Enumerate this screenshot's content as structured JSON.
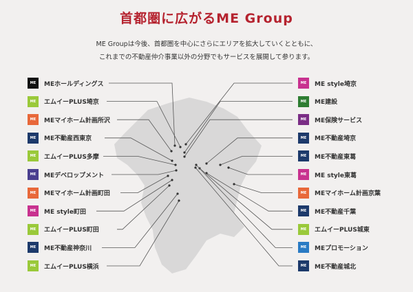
{
  "title": "首都圏に広がるME Group",
  "intro": [
    "ME Groupは今後、首都圏を中心にさらにエリアを拡大していくとともに、",
    "これまでの不動産仲介事業以外の分野でもサービスを展開して参ります。"
  ],
  "left": [
    {
      "label": "MEホールディングス",
      "logo": "me-holdings-logo",
      "color": "#111111"
    },
    {
      "label": "エムイーPLUS埼京",
      "logo": "me-plus-logo",
      "color": "#9ac93a"
    },
    {
      "label": "MEマイホーム計画所沢",
      "logo": "myhome-logo",
      "color": "#e8683a"
    },
    {
      "label": "ME不動産西東京",
      "logo": "me-fudosan-logo",
      "color": "#1d3a6b"
    },
    {
      "label": "エムイーPLUS多摩",
      "logo": "me-plus-logo",
      "color": "#9ac93a"
    },
    {
      "label": "MEデベロップメント",
      "logo": "me-development-logo",
      "color": "#4a3f8f"
    },
    {
      "label": "MEマイホーム計画町田",
      "logo": "myhome-logo",
      "color": "#e8683a"
    },
    {
      "label": "ME style町田",
      "logo": "me-style-logo",
      "color": "#c8328f"
    },
    {
      "label": "エムイーPLUS町田",
      "logo": "me-plus-logo",
      "color": "#9ac93a"
    },
    {
      "label": "ME不動産神奈川",
      "logo": "me-fudosan-logo",
      "color": "#1d3a6b"
    },
    {
      "label": "エムイーPLUS横浜",
      "logo": "me-plus-logo",
      "color": "#9ac93a"
    }
  ],
  "right": [
    {
      "label": "ME style埼京",
      "logo": "me-style-logo",
      "color": "#c8328f"
    },
    {
      "label": "ME建設",
      "logo": "me-kensetsu-logo",
      "color": "#2e7d32"
    },
    {
      "label": "ME保険サービス",
      "logo": "me-hoken-logo",
      "color": "#7a2d85"
    },
    {
      "label": "ME不動産埼京",
      "logo": "me-fudosan-logo",
      "color": "#1d3a6b"
    },
    {
      "label": "ME不動産東葛",
      "logo": "me-fudosan-logo",
      "color": "#1d3a6b"
    },
    {
      "label": "ME style東葛",
      "logo": "me-style-logo",
      "color": "#c8328f"
    },
    {
      "label": "MEマイホーム計画京葉",
      "logo": "myhome-logo",
      "color": "#e8683a"
    },
    {
      "label": "ME不動産千葉",
      "logo": "me-fudosan-logo",
      "color": "#1d3a6b"
    },
    {
      "label": "エムイーPLUS城東",
      "logo": "me-plus-logo",
      "color": "#9ac93a"
    },
    {
      "label": "MEプロモーション",
      "logo": "me-promotion-logo",
      "color": "#2a7bc4"
    },
    {
      "label": "ME不動産城北",
      "logo": "me-fudosan-logo",
      "color": "#1d3a6b"
    }
  ]
}
